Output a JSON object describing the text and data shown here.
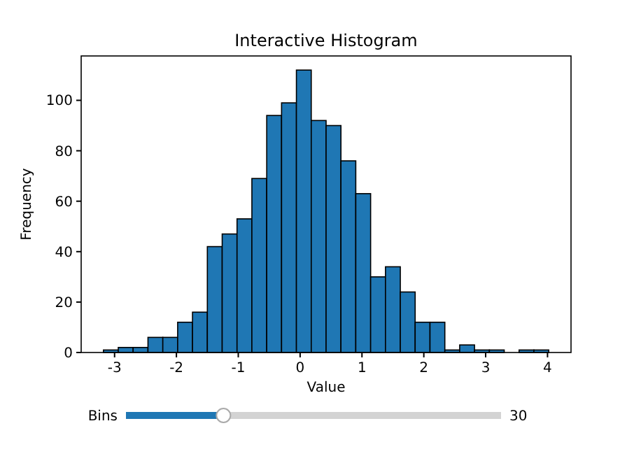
{
  "chart_data": {
    "type": "histogram",
    "title": "Interactive Histogram",
    "xlabel": "Value",
    "ylabel": "Frequency",
    "bins": [
      -3.18,
      -2.94,
      -2.7,
      -2.46,
      -2.22,
      -1.98,
      -1.74,
      -1.5,
      -1.26,
      -1.02,
      -0.78,
      -0.54,
      -0.3,
      -0.06,
      0.18,
      0.42,
      0.66,
      0.9,
      1.14,
      1.38,
      1.62,
      1.86,
      2.1,
      2.34,
      2.58,
      2.82,
      3.06,
      3.3,
      3.54,
      3.78,
      4.02
    ],
    "values": [
      1,
      2,
      2,
      6,
      6,
      12,
      16,
      42,
      47,
      53,
      69,
      94,
      99,
      112,
      92,
      90,
      76,
      63,
      30,
      34,
      24,
      12,
      12,
      1,
      3,
      1,
      1,
      0,
      1,
      1
    ],
    "color": "#1f77b4",
    "xlim": [
      -3.54,
      4.38
    ],
    "xticks": [
      -3,
      -2,
      -1,
      0,
      1,
      2,
      3,
      4
    ],
    "ylim": [
      0,
      117.6
    ],
    "yticks": [
      0,
      20,
      40,
      60,
      80,
      100
    ],
    "annotations": [
      "Bins",
      "30"
    ]
  }
}
